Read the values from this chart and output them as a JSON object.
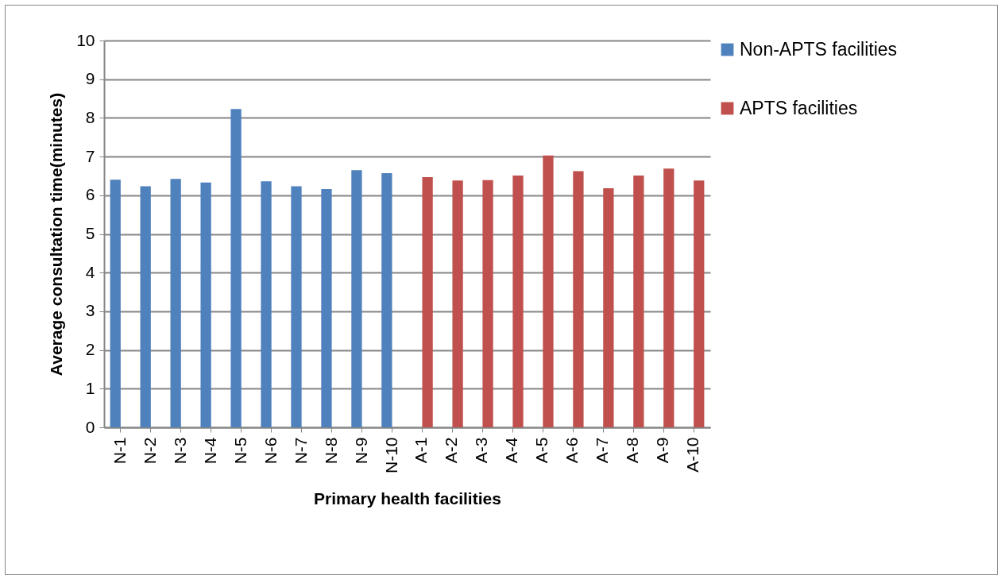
{
  "chart_data": {
    "type": "bar",
    "xlabel": "Primary health facilities",
    "ylabel": "Average consultation time(minutes)",
    "categories": [
      "N-1",
      "N-2",
      "N-3",
      "N-4",
      "N-5",
      "N-6",
      "N-7",
      "N-8",
      "N-9",
      "N-10",
      "A-1",
      "A-2",
      "A-3",
      "A-4",
      "A-5",
      "A-6",
      "A-7",
      "A-8",
      "A-9",
      "A-10"
    ],
    "series": [
      {
        "name": "Non-APTS facilities",
        "color": "#4f81bd",
        "values": [
          6.4,
          6.23,
          6.42,
          6.33,
          8.23,
          6.36,
          6.23,
          6.16,
          6.65,
          6.57,
          null,
          null,
          null,
          null,
          null,
          null,
          null,
          null,
          null,
          null
        ]
      },
      {
        "name": "APTS facilities",
        "color": "#c0504d",
        "values": [
          null,
          null,
          null,
          null,
          null,
          null,
          null,
          null,
          null,
          null,
          6.47,
          6.38,
          6.39,
          6.51,
          7.03,
          6.62,
          6.18,
          6.51,
          6.69,
          6.38
        ]
      }
    ],
    "ylim": [
      0,
      10
    ],
    "yticks": [
      0,
      1,
      2,
      3,
      4,
      5,
      6,
      7,
      8,
      9,
      10
    ],
    "grid": "y",
    "legend": "right"
  }
}
